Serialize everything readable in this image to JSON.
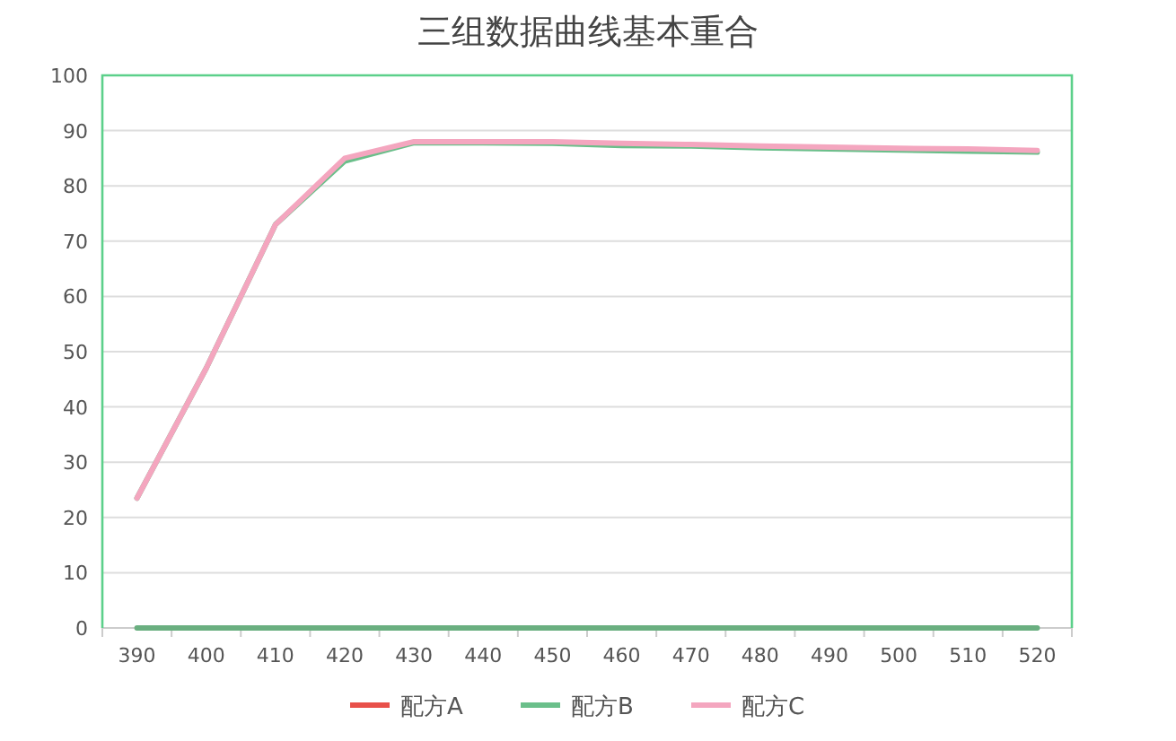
{
  "chart_data": {
    "type": "line",
    "title": "三组数据曲线基本重合",
    "categories": [
      "390",
      "400",
      "410",
      "420",
      "430",
      "440",
      "450",
      "460",
      "470",
      "480",
      "490",
      "500",
      "510",
      "520"
    ],
    "ylim": [
      0,
      100
    ],
    "yticks": [
      0,
      10,
      20,
      30,
      40,
      50,
      60,
      70,
      80,
      90,
      100
    ],
    "grid": "y",
    "legend": "bottom",
    "marker": "none",
    "line_style": "solid",
    "series": [
      {
        "name": "配方A",
        "color": "#e8504a",
        "values": [
          null,
          null,
          null,
          null,
          null,
          null,
          null,
          null,
          null,
          null,
          null,
          null,
          null,
          null
        ]
      },
      {
        "name": "配方B",
        "color": "#6abf8a",
        "values": [
          23.5,
          47,
          73,
          84.5,
          87.8,
          87.8,
          87.7,
          87.3,
          87.2,
          86.9,
          86.7,
          86.5,
          86.3,
          86.1
        ]
      },
      {
        "color": "#6aaf80",
        "values": [
          0,
          0,
          0,
          0,
          0,
          0,
          0,
          0,
          0,
          0,
          0,
          0,
          0,
          0
        ]
      },
      {
        "name": "配方C",
        "color": "#f4a6bf",
        "values": [
          23.5,
          47,
          73,
          85,
          88,
          88,
          88,
          87.7,
          87.5,
          87.2,
          87,
          86.8,
          86.7,
          86.4
        ]
      }
    ]
  }
}
